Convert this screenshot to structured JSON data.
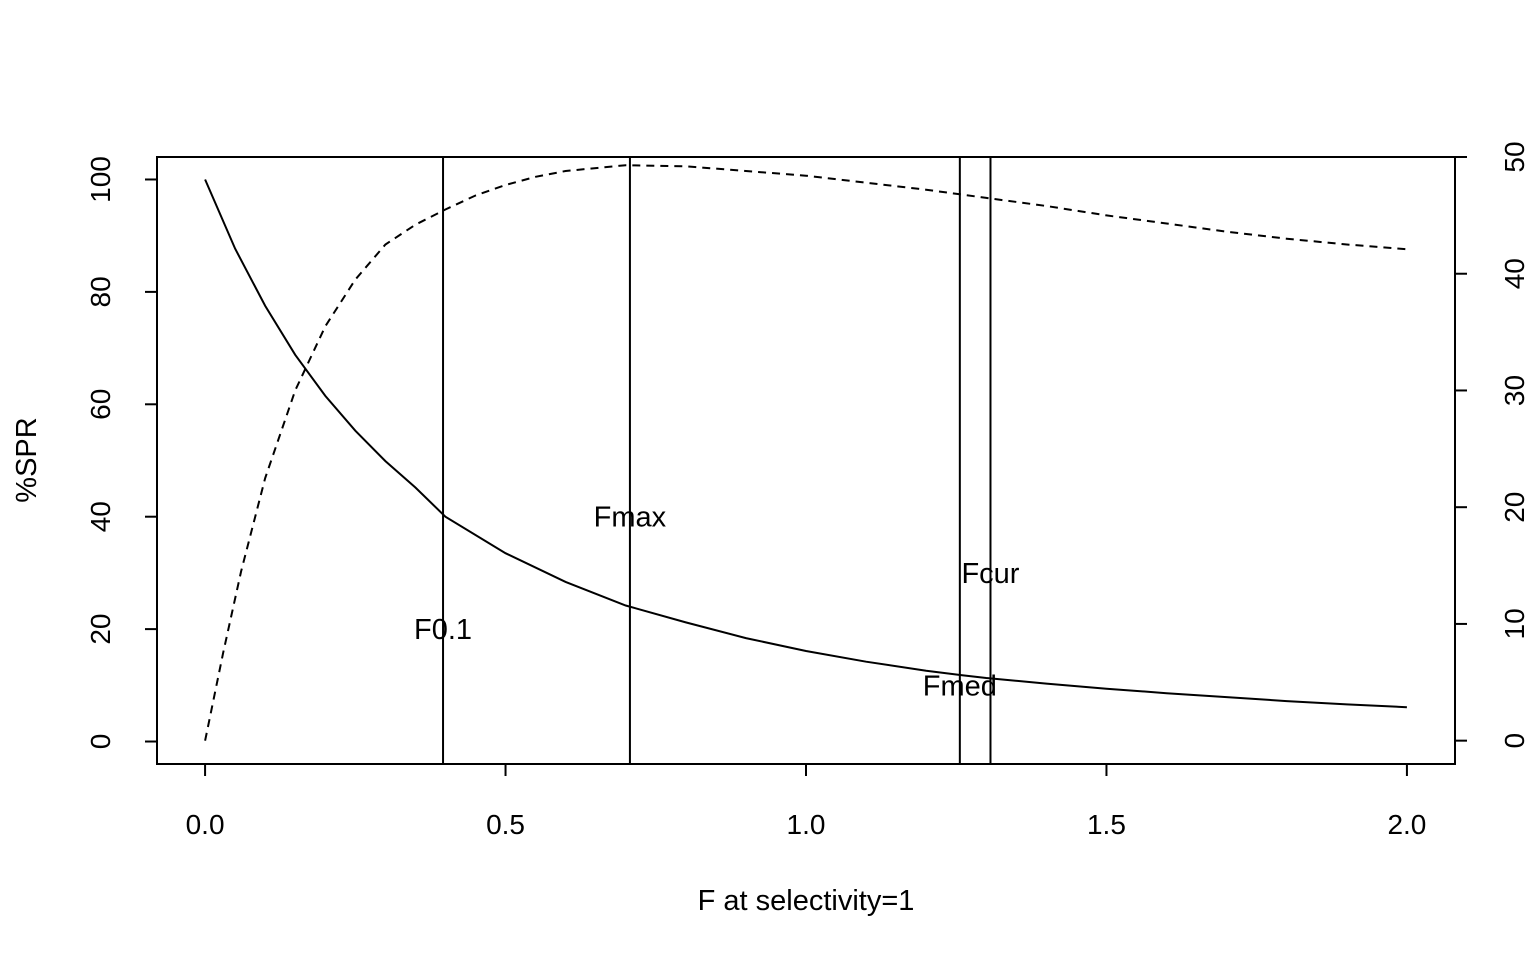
{
  "chart_data": {
    "type": "line",
    "title": "",
    "xlabel": "F at selectivity=1",
    "ylabel": "%SPR",
    "y2label": "",
    "xlim": [
      -0.08,
      2.08
    ],
    "ylim": [
      -4,
      104
    ],
    "y2lim": [
      -2,
      50
    ],
    "xticks": [
      0.0,
      0.5,
      1.0,
      1.5,
      2.0
    ],
    "xtick_labels": [
      "0.0",
      "0.5",
      "1.0",
      "1.5",
      "2.0"
    ],
    "yticks": [
      0,
      20,
      40,
      60,
      80,
      100
    ],
    "ytick_labels": [
      "0",
      "20",
      "40",
      "60",
      "80",
      "100"
    ],
    "y2ticks": [
      0,
      10,
      20,
      30,
      40,
      50
    ],
    "y2tick_labels": [
      "0",
      "10",
      "20",
      "30",
      "40",
      "50"
    ],
    "grid": false,
    "series": [
      {
        "axis": "left",
        "style": "solid",
        "x": [
          0.0,
          0.05,
          0.1,
          0.15,
          0.2,
          0.25,
          0.3,
          0.35,
          0.4,
          0.5,
          0.6,
          0.7,
          0.8,
          0.9,
          1.0,
          1.1,
          1.2,
          1.26,
          1.3,
          1.4,
          1.5,
          1.6,
          1.7,
          1.8,
          1.9,
          2.0
        ],
        "y": [
          100,
          87.7,
          77.5,
          68.8,
          61.5,
          55.3,
          49.9,
          45.2,
          40.0,
          33.5,
          28.4,
          24.2,
          21.2,
          18.4,
          16.1,
          14.2,
          12.6,
          11.8,
          11.3,
          10.3,
          9.4,
          8.6,
          7.9,
          7.2,
          6.6,
          6.1
        ]
      },
      {
        "axis": "right",
        "style": "dashed",
        "x": [
          0.0,
          0.03,
          0.06,
          0.1,
          0.15,
          0.2,
          0.25,
          0.3,
          0.35,
          0.4,
          0.45,
          0.5,
          0.55,
          0.6,
          0.7,
          0.8,
          0.9,
          1.0,
          1.1,
          1.2,
          1.3,
          1.4,
          1.5,
          1.6,
          1.7,
          1.8,
          1.9,
          2.0
        ],
        "y": [
          0,
          7.5,
          14.5,
          22.5,
          30.0,
          35.5,
          39.5,
          42.5,
          44.2,
          45.5,
          46.7,
          47.6,
          48.3,
          48.8,
          49.3,
          49.2,
          48.8,
          48.4,
          47.8,
          47.2,
          46.5,
          45.8,
          45.0,
          44.3,
          43.6,
          43.0,
          42.5,
          42.1
        ]
      }
    ],
    "reference_lines": [
      {
        "label": "F0.1",
        "x": 0.396,
        "label_y": 20
      },
      {
        "label": "Fmax",
        "x": 0.707,
        "label_y": 40
      },
      {
        "label": "Fmed",
        "x": 1.256,
        "label_y": 10
      },
      {
        "label": "Fcur",
        "x": 1.307,
        "label_y": 30
      }
    ]
  }
}
